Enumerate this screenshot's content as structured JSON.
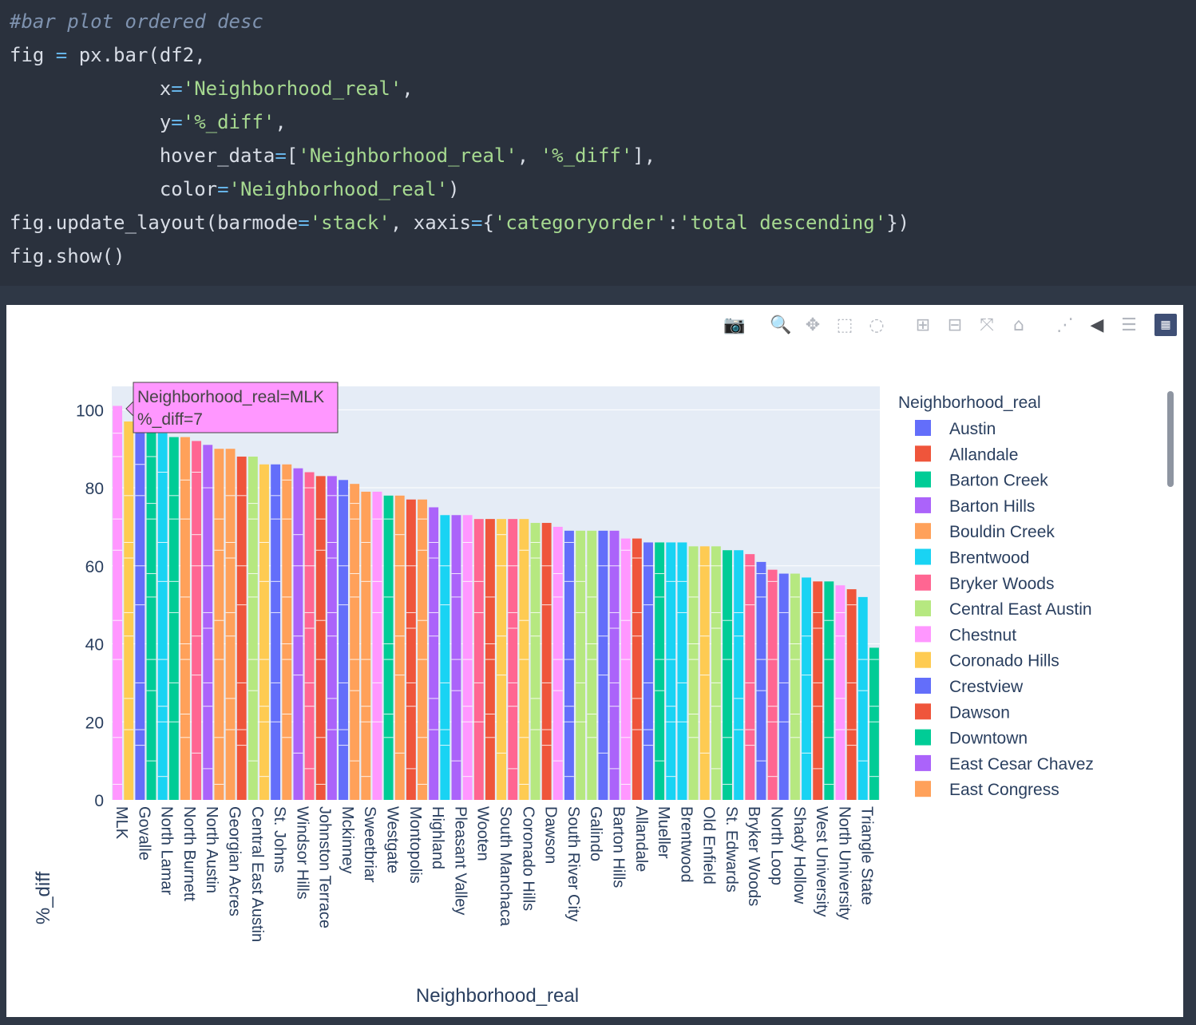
{
  "code": {
    "lines": [
      [
        {
          "t": "#bar plot ordered desc",
          "c": "cm"
        }
      ],
      [
        {
          "t": "fig "
        },
        {
          "t": "=",
          "c": "op"
        },
        {
          "t": " px.bar(df2,"
        }
      ],
      [
        {
          "t": "             x"
        },
        {
          "t": "=",
          "c": "op"
        },
        {
          "t": "'Neighborhood_real'",
          "c": "st"
        },
        {
          "t": ","
        }
      ],
      [
        {
          "t": "             y"
        },
        {
          "t": "=",
          "c": "op"
        },
        {
          "t": "'%_diff'",
          "c": "st"
        },
        {
          "t": ","
        }
      ],
      [
        {
          "t": "             hover_data"
        },
        {
          "t": "=",
          "c": "op"
        },
        {
          "t": "["
        },
        {
          "t": "'Neighborhood_real'",
          "c": "st"
        },
        {
          "t": ", "
        },
        {
          "t": "'%_diff'",
          "c": "st"
        },
        {
          "t": "],"
        }
      ],
      [
        {
          "t": "             color"
        },
        {
          "t": "=",
          "c": "op"
        },
        {
          "t": "'Neighborhood_real'",
          "c": "st"
        },
        {
          "t": ")"
        }
      ],
      [
        {
          "t": "fig.update_layout(barmode"
        },
        {
          "t": "=",
          "c": "op"
        },
        {
          "t": "'stack'",
          "c": "st"
        },
        {
          "t": ", xaxis"
        },
        {
          "t": "=",
          "c": "op"
        },
        {
          "t": "{"
        },
        {
          "t": "'categoryorder'",
          "c": "st"
        },
        {
          "t": ":"
        },
        {
          "t": "'total descending'",
          "c": "st"
        },
        {
          "t": "})"
        }
      ],
      [
        {
          "t": "fig.show()"
        }
      ]
    ]
  },
  "modebar": [
    "camera-icon",
    "zoom-icon",
    "pan-icon",
    "box-select-icon",
    "lasso-icon",
    "zoom-in-icon",
    "zoom-out-icon",
    "autoscale-icon",
    "reset-axes-icon",
    "spike-lines-icon",
    "hover-closest-icon",
    "hover-compare-icon",
    "plotly-logo-icon"
  ],
  "tooltip": {
    "line1": "Neighborhood_real=MLK",
    "line2": "%_diff=7",
    "color": "#ff97ff"
  },
  "chart_data": {
    "type": "bar",
    "barmode": "stack",
    "xlabel": "Neighborhood_real",
    "ylabel": "%_diff",
    "ylim": [
      0,
      106
    ],
    "yticks": [
      0,
      20,
      40,
      60,
      80,
      100
    ],
    "legend_title": "Neighborhood_real",
    "legend_placement": "right",
    "legend_entries": [
      {
        "name": "Austin",
        "color": "#636efa"
      },
      {
        "name": "Allandale",
        "color": "#ef553b"
      },
      {
        "name": "Barton Creek",
        "color": "#00cc96"
      },
      {
        "name": "Barton Hills",
        "color": "#ab63fa"
      },
      {
        "name": "Bouldin Creek",
        "color": "#ffa15a"
      },
      {
        "name": "Brentwood",
        "color": "#19d3f3"
      },
      {
        "name": "Bryker Woods",
        "color": "#ff6692"
      },
      {
        "name": "Central East Austin",
        "color": "#b6e880"
      },
      {
        "name": "Chestnut",
        "color": "#ff97ff"
      },
      {
        "name": "Coronado Hills",
        "color": "#fecb52"
      },
      {
        "name": "Crestview",
        "color": "#636efa"
      },
      {
        "name": "Dawson",
        "color": "#ef553b"
      },
      {
        "name": "Downtown",
        "color": "#00cc96"
      },
      {
        "name": "East Cesar Chavez",
        "color": "#ab63fa"
      },
      {
        "name": "East Congress",
        "color": "#ffa15a"
      }
    ],
    "categories": [
      "MLK",
      "Govalle",
      "North Lamar",
      "North Burnett",
      "North Austin",
      "Georgian Acres",
      "Central East Austin",
      "St. Johns",
      "Windsor Hills",
      "Johnston Terrace",
      "Mckinney",
      "Sweetbriar",
      "Westgate",
      "Montopolis",
      "Highland",
      "Pleasant Valley",
      "Wooten",
      "South Manchaca",
      "Coronado Hills",
      "Dawson",
      "South River City",
      "Galindo",
      "Barton Hills",
      "Allandale",
      "Mueller",
      "Brentwood",
      "Old Enfield",
      "St. Edwards",
      "Bryker Woods",
      "North Loop",
      "Shady Hollow",
      "West University",
      "North University",
      "Triangle State"
    ],
    "bars": [
      {
        "total": 101,
        "color": "#ff97ff"
      },
      {
        "total": 97,
        "color": "#fecb52"
      },
      {
        "total": 96,
        "color": "#636efa"
      },
      {
        "total": 95,
        "color": "#00cc96"
      },
      {
        "total": 94,
        "color": "#19d3f3"
      },
      {
        "total": 93,
        "color": "#00cc96"
      },
      {
        "total": 93,
        "color": "#ffa15a"
      },
      {
        "total": 92,
        "color": "#ff6692"
      },
      {
        "total": 91,
        "color": "#ab63fa"
      },
      {
        "total": 90,
        "color": "#ffa15a"
      },
      {
        "total": 90,
        "color": "#ffa15a"
      },
      {
        "total": 88,
        "color": "#ef553b"
      },
      {
        "total": 88,
        "color": "#b6e880"
      },
      {
        "total": 86,
        "color": "#fecb52"
      },
      {
        "total": 86,
        "color": "#636efa"
      },
      {
        "total": 86,
        "color": "#ffa15a"
      },
      {
        "total": 85,
        "color": "#ab63fa"
      },
      {
        "total": 84,
        "color": "#ff6692"
      },
      {
        "total": 83,
        "color": "#ef553b"
      },
      {
        "total": 83,
        "color": "#ab63fa"
      },
      {
        "total": 82,
        "color": "#636efa"
      },
      {
        "total": 81,
        "color": "#ffa15a"
      },
      {
        "total": 79,
        "color": "#ffa15a"
      },
      {
        "total": 79,
        "color": "#ff97ff"
      },
      {
        "total": 78,
        "color": "#00cc96"
      },
      {
        "total": 78,
        "color": "#ffa15a"
      },
      {
        "total": 77,
        "color": "#ef553b"
      },
      {
        "total": 77,
        "color": "#ffa15a"
      },
      {
        "total": 75,
        "color": "#ab63fa"
      },
      {
        "total": 73,
        "color": "#19d3f3"
      },
      {
        "total": 73,
        "color": "#ab63fa"
      },
      {
        "total": 73,
        "color": "#ff97ff"
      },
      {
        "total": 72,
        "color": "#ff6692"
      },
      {
        "total": 72,
        "color": "#ef553b"
      },
      {
        "total": 72,
        "color": "#fecb52"
      },
      {
        "total": 72,
        "color": "#ff6692"
      },
      {
        "total": 72,
        "color": "#fecb52"
      },
      {
        "total": 71,
        "color": "#b6e880"
      },
      {
        "total": 71,
        "color": "#ef553b"
      },
      {
        "total": 70,
        "color": "#ff97ff"
      },
      {
        "total": 69,
        "color": "#636efa"
      },
      {
        "total": 69,
        "color": "#b6e880"
      },
      {
        "total": 69,
        "color": "#b6e880"
      },
      {
        "total": 69,
        "color": "#636efa"
      },
      {
        "total": 69,
        "color": "#ab63fa"
      },
      {
        "total": 67,
        "color": "#ff97ff"
      },
      {
        "total": 67,
        "color": "#ef553b"
      },
      {
        "total": 66,
        "color": "#636efa"
      },
      {
        "total": 66,
        "color": "#00cc96"
      },
      {
        "total": 66,
        "color": "#19d3f3"
      },
      {
        "total": 66,
        "color": "#19d3f3"
      },
      {
        "total": 65,
        "color": "#b6e880"
      },
      {
        "total": 65,
        "color": "#fecb52"
      },
      {
        "total": 65,
        "color": "#b6e880"
      },
      {
        "total": 64,
        "color": "#00cc96"
      },
      {
        "total": 64,
        "color": "#19d3f3"
      },
      {
        "total": 63,
        "color": "#ff6692"
      },
      {
        "total": 61,
        "color": "#636efa"
      },
      {
        "total": 59,
        "color": "#ff6692"
      },
      {
        "total": 58,
        "color": "#636efa"
      },
      {
        "total": 58,
        "color": "#b6e880"
      },
      {
        "total": 57,
        "color": "#19d3f3"
      },
      {
        "total": 56,
        "color": "#ef553b"
      },
      {
        "total": 56,
        "color": "#00cc96"
      },
      {
        "total": 55,
        "color": "#ff97ff"
      },
      {
        "total": 54,
        "color": "#ef553b"
      },
      {
        "total": 52,
        "color": "#19d3f3"
      },
      {
        "total": 39,
        "color": "#00cc96"
      }
    ]
  }
}
